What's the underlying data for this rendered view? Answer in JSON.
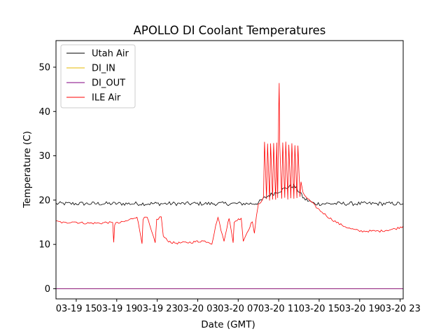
{
  "chart_data": {
    "type": "line",
    "title": "APOLLO DI Coolant Temperatures",
    "xlabel": "Date (GMT)",
    "ylabel": "Temperature (C)",
    "x_unit": "hours since 03-19 11:00 GMT",
    "xlim": [
      2.0,
      36.3
    ],
    "ylim": [
      -2.3,
      56.0
    ],
    "x_ticks": [
      {
        "x": 4,
        "label": "03-19 15"
      },
      {
        "x": 8,
        "label": "03-19 19"
      },
      {
        "x": 12,
        "label": "03-19 23"
      },
      {
        "x": 16,
        "label": "03-20 03"
      },
      {
        "x": 20,
        "label": "03-20 07"
      },
      {
        "x": 24,
        "label": "03-20 11"
      },
      {
        "x": 28,
        "label": "03-20 15"
      },
      {
        "x": 32,
        "label": "03-20 19"
      },
      {
        "x": 36,
        "label": "03-20 23"
      }
    ],
    "y_ticks": [
      {
        "y": 0,
        "label": "0"
      },
      {
        "y": 10,
        "label": "10"
      },
      {
        "y": 20,
        "label": "20"
      },
      {
        "y": 30,
        "label": "30"
      },
      {
        "y": 40,
        "label": "40"
      },
      {
        "y": 50,
        "label": "50"
      }
    ],
    "grid": false,
    "legend_position": "upper-left",
    "series": [
      {
        "name": "Utah Air",
        "color": "#000000",
        "x": [
          2.0,
          21.5,
          22.0,
          22.5,
          23.0,
          23.5,
          24.0,
          24.5,
          25.0,
          25.5,
          26.0,
          26.5,
          27.0,
          27.5,
          36.3
        ],
        "y": [
          19.2,
          19.2,
          19.4,
          20.3,
          21.0,
          21.5,
          22.0,
          22.5,
          23.0,
          23.2,
          22.0,
          20.3,
          19.8,
          19.2,
          19.2
        ],
        "noise": 0.45
      },
      {
        "name": "DI_IN",
        "color": "#e6b800",
        "x": [
          2.0,
          36.3
        ],
        "y": [
          0.0,
          0.0
        ]
      },
      {
        "name": "DI_OUT",
        "color": "#800080",
        "x": [
          2.0,
          36.3
        ],
        "y": [
          0.0,
          0.0
        ]
      },
      {
        "name": "ILE Air",
        "color": "#ff0000",
        "x": [
          2.0,
          3.0,
          3.6,
          4.3,
          5.0,
          6.5,
          7.0,
          7.6,
          7.7,
          7.8,
          7.9,
          8.2,
          9.0,
          10.0,
          10.5,
          10.6,
          11.0,
          11.8,
          11.95,
          12.4,
          12.6,
          13.0,
          13.5,
          14.0,
          15.5,
          16.0,
          16.05,
          16.4,
          17.0,
          17.4,
          17.9,
          18.0,
          18.6,
          19.0,
          19.1,
          19.5,
          19.6,
          20.3,
          20.5,
          21.4,
          21.6,
          21.8,
          22.0,
          22.5,
          22.6,
          22.8,
          22.9,
          23.1,
          23.2,
          23.4,
          23.5,
          23.7,
          23.8,
          23.9,
          24.0,
          24.05,
          24.1,
          24.3,
          24.4,
          24.6,
          24.7,
          24.9,
          25.0,
          25.2,
          25.3,
          25.5,
          25.6,
          25.8,
          25.9,
          26.1,
          26.2,
          26.4,
          27.0,
          28.0,
          29.0,
          30.0,
          31.0,
          32.0,
          34.0,
          35.5,
          36.3
        ],
        "y": [
          15.2,
          14.8,
          15.2,
          14.9,
          14.8,
          14.8,
          15.0,
          14.8,
          10.6,
          14.5,
          14.8,
          14.8,
          15.3,
          16.3,
          10.4,
          15.8,
          16.1,
          10.3,
          15.6,
          16.3,
          11.8,
          10.9,
          10.4,
          10.3,
          10.5,
          10.7,
          10.6,
          10.8,
          10.6,
          10.2,
          15.4,
          16.1,
          10.6,
          15.3,
          16.0,
          10.3,
          15.1,
          16.0,
          10.8,
          15.3,
          12.5,
          16.2,
          19.0,
          20.5,
          33.0,
          20.3,
          32.5,
          20.0,
          33.0,
          20.2,
          32.8,
          20.1,
          33.0,
          20.5,
          40.0,
          46.4,
          33.0,
          20.3,
          32.8,
          20.4,
          33.0,
          20.2,
          32.5,
          20.6,
          32.8,
          20.4,
          32.4,
          20.3,
          32.3,
          20.8,
          24.0,
          21.5,
          20.0,
          17.8,
          16.0,
          14.6,
          13.6,
          13.0,
          13.0,
          13.5,
          14.1
        ],
        "noise": 0.25
      }
    ]
  }
}
